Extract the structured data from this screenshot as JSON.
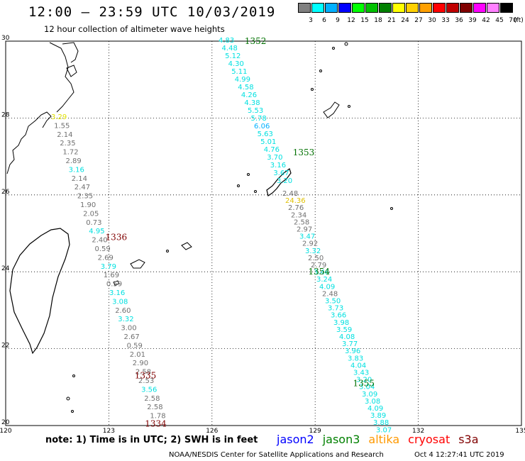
{
  "header": {
    "title": "12:00 – 23:59 UTC 10/03/2019",
    "subtitle": "12 hour collection of altimeter wave heights"
  },
  "legend": {
    "unit": "(ft)",
    "entries": [
      {
        "label": "3",
        "color": "#808080"
      },
      {
        "label": "6",
        "color": "#00ffff"
      },
      {
        "label": "9",
        "color": "#00b0ff"
      },
      {
        "label": "12",
        "color": "#0000ff"
      },
      {
        "label": "15",
        "color": "#00ff00"
      },
      {
        "label": "18",
        "color": "#00c000"
      },
      {
        "label": "21",
        "color": "#008000"
      },
      {
        "label": "24",
        "color": "#ffff00"
      },
      {
        "label": "27",
        "color": "#ffd000"
      },
      {
        "label": "30",
        "color": "#ffa000"
      },
      {
        "label": "33",
        "color": "#ff0000"
      },
      {
        "label": "36",
        "color": "#c00000"
      },
      {
        "label": "39",
        "color": "#800000"
      },
      {
        "label": "42",
        "color": "#ff00ff"
      },
      {
        "label": "45",
        "color": "#ff80ff"
      },
      {
        "label": "70",
        "color": "#000000"
      }
    ]
  },
  "axes": {
    "lon_labels": [
      "120",
      "123",
      "126",
      "129",
      "132",
      "135"
    ],
    "lat_labels": [
      "30",
      "28",
      "26",
      "24",
      "22",
      "20"
    ],
    "lon_range": [
      120,
      135
    ],
    "lat_range": [
      20,
      30
    ]
  },
  "passes": [
    {
      "label": "1352",
      "color": "#007000",
      "lon": 126.95,
      "lat": 30.0
    },
    {
      "label": "1353",
      "color": "#007000",
      "lon": 128.35,
      "lat": 27.1
    },
    {
      "label": "1354",
      "color": "#007000",
      "lon": 128.8,
      "lat": 24.0
    },
    {
      "label": "1355",
      "color": "#007000",
      "lon": 130.1,
      "lat": 21.1
    },
    {
      "label": "1336",
      "color": "#800000",
      "lon": 122.9,
      "lat": 24.9
    },
    {
      "label": "1335",
      "color": "#800000",
      "lon": 123.75,
      "lat": 21.3
    },
    {
      "label": "1334",
      "color": "#800000",
      "lon": 124.05,
      "lat": 20.05
    }
  ],
  "swh_tracks": [
    {
      "values": [
        {
          "v": "4.83",
          "c": "#00e0e0"
        },
        {
          "v": "4.48",
          "c": "#00e0e0"
        },
        {
          "v": "5.12",
          "c": "#00e0e0"
        },
        {
          "v": "4.30",
          "c": "#00e0e0"
        },
        {
          "v": "5.11",
          "c": "#00e0e0"
        },
        {
          "v": "4.99",
          "c": "#00e0e0"
        },
        {
          "v": "4.58",
          "c": "#00e0e0"
        },
        {
          "v": "4.26",
          "c": "#00e0e0"
        },
        {
          "v": "4.38",
          "c": "#00e0e0"
        },
        {
          "v": "5.53",
          "c": "#00e0e0"
        },
        {
          "v": "5.78",
          "c": "#00e0e0"
        },
        {
          "v": "6.06",
          "c": "#00b0ff"
        },
        {
          "v": "5.63",
          "c": "#00e0e0"
        },
        {
          "v": "5.01",
          "c": "#00e0e0"
        },
        {
          "v": "4.76",
          "c": "#00e0e0"
        },
        {
          "v": "3.70",
          "c": "#00e0e0"
        },
        {
          "v": "3.16",
          "c": "#00e0e0"
        },
        {
          "v": "3.67",
          "c": "#00e0e0"
        },
        {
          "v": "3.20",
          "c": "#00e0e0"
        }
      ]
    },
    {
      "values": [
        {
          "v": "2.48",
          "c": "#707070"
        },
        {
          "v": "24.36",
          "c": "#e0c000"
        },
        {
          "v": "2.76",
          "c": "#707070"
        },
        {
          "v": "2.34",
          "c": "#707070"
        },
        {
          "v": "2.58",
          "c": "#707070"
        },
        {
          "v": "2.97",
          "c": "#707070"
        },
        {
          "v": "3.47",
          "c": "#00e0e0"
        },
        {
          "v": "2.92",
          "c": "#707070"
        },
        {
          "v": "3.32",
          "c": "#00e0e0"
        },
        {
          "v": "2.50",
          "c": "#707070"
        },
        {
          "v": "2.79",
          "c": "#707070"
        },
        {
          "v": "3.46",
          "c": "#00e0e0"
        },
        {
          "v": "3.24",
          "c": "#00e0e0"
        },
        {
          "v": "4.09",
          "c": "#00e0e0"
        },
        {
          "v": "2.48",
          "c": "#707070"
        },
        {
          "v": "3.50",
          "c": "#00e0e0"
        },
        {
          "v": "3.73",
          "c": "#00e0e0"
        },
        {
          "v": "3.66",
          "c": "#00e0e0"
        },
        {
          "v": "3.98",
          "c": "#00e0e0"
        },
        {
          "v": "3.59",
          "c": "#00e0e0"
        },
        {
          "v": "4.08",
          "c": "#00e0e0"
        },
        {
          "v": "3.77",
          "c": "#00e0e0"
        },
        {
          "v": "3.96",
          "c": "#00e0e0"
        },
        {
          "v": "3.83",
          "c": "#00e0e0"
        },
        {
          "v": "4.04",
          "c": "#00e0e0"
        },
        {
          "v": "3.43",
          "c": "#00e0e0"
        },
        {
          "v": "3.20",
          "c": "#00e0e0"
        },
        {
          "v": "3.04",
          "c": "#00e0e0"
        },
        {
          "v": "3.09",
          "c": "#00e0e0"
        },
        {
          "v": "3.08",
          "c": "#00e0e0"
        },
        {
          "v": "4.09",
          "c": "#00e0e0"
        },
        {
          "v": "3.89",
          "c": "#00e0e0"
        },
        {
          "v": "3.88",
          "c": "#00e0e0"
        },
        {
          "v": "3.07",
          "c": "#00e0e0"
        }
      ]
    },
    {
      "values": [
        {
          "v": "3.29",
          "c": "#e0e000"
        },
        {
          "v": "1.55",
          "c": "#707070"
        },
        {
          "v": "2.14",
          "c": "#707070"
        },
        {
          "v": "2.35",
          "c": "#707070"
        },
        {
          "v": "1.72",
          "c": "#707070"
        },
        {
          "v": "2.89",
          "c": "#707070"
        },
        {
          "v": "3.16",
          "c": "#00e0e0"
        },
        {
          "v": "2.14",
          "c": "#707070"
        },
        {
          "v": "2.47",
          "c": "#707070"
        },
        {
          "v": "2.35",
          "c": "#707070"
        },
        {
          "v": "1.90",
          "c": "#707070"
        },
        {
          "v": "2.05",
          "c": "#707070"
        },
        {
          "v": "0.73",
          "c": "#707070"
        },
        {
          "v": "4.95",
          "c": "#00e0e0"
        },
        {
          "v": "2.40",
          "c": "#707070"
        },
        {
          "v": "0.59",
          "c": "#707070"
        },
        {
          "v": "2.69",
          "c": "#707070"
        },
        {
          "v": "3.79",
          "c": "#00e0e0"
        },
        {
          "v": "1.69",
          "c": "#707070"
        },
        {
          "v": "0.59",
          "c": "#707070"
        },
        {
          "v": "3.16",
          "c": "#00e0e0"
        },
        {
          "v": "3.08",
          "c": "#00e0e0"
        },
        {
          "v": "2.60",
          "c": "#707070"
        },
        {
          "v": "3.32",
          "c": "#00e0e0"
        },
        {
          "v": "3.00",
          "c": "#707070"
        },
        {
          "v": "2.67",
          "c": "#707070"
        },
        {
          "v": "0.59",
          "c": "#707070"
        },
        {
          "v": "2.01",
          "c": "#707070"
        },
        {
          "v": "2.90",
          "c": "#707070"
        },
        {
          "v": "2.58",
          "c": "#707070"
        },
        {
          "v": "2.53",
          "c": "#707070"
        },
        {
          "v": "3.56",
          "c": "#00e0e0"
        },
        {
          "v": "2.58",
          "c": "#707070"
        },
        {
          "v": "2.58",
          "c": "#707070"
        },
        {
          "v": "1.78",
          "c": "#707070"
        }
      ]
    }
  ],
  "footer": {
    "note": "note: 1) Time is in UTC; 2) SWH is in feet",
    "satellites": [
      {
        "name": "jason2",
        "color": "#0000ff"
      },
      {
        "name": "jason3",
        "color": "#008000"
      },
      {
        "name": "altika",
        "color": "#ff9900"
      },
      {
        "name": "cryosat",
        "color": "#ff0000"
      },
      {
        "name": "s3a",
        "color": "#800000"
      }
    ],
    "credit": "NOAA/NESDIS Center for Satellite Applications and Research",
    "date": "Oct 4 12:27:41 UTC 2019"
  }
}
